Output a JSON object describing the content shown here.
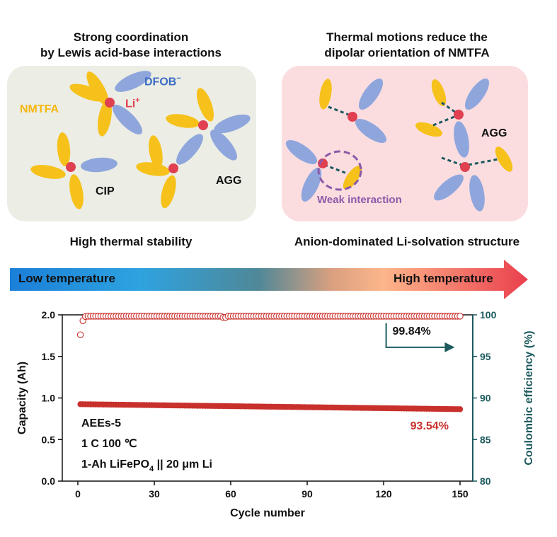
{
  "left_panel": {
    "heading_line1": "Strong coordination",
    "heading_line2": "by Lewis acid-base interactions",
    "label_nmtfa": "NMTFA",
    "label_li": "Li",
    "label_li_sup": "+",
    "label_dfob": "DFOB",
    "label_dfob_sup": "−",
    "label_cip": "CIP",
    "label_agg": "AGG",
    "caption": "High thermal stability"
  },
  "right_panel": {
    "heading_line1": "Thermal motions reduce the",
    "heading_line2": "dipolar orientation of NMTFA",
    "label_agg": "AGG",
    "label_weak": "Weak interaction",
    "caption": "Anion-dominated Li-solvation structure"
  },
  "temperature_bar": {
    "low_label": "Low temperature",
    "high_label": "High temperature"
  },
  "colors": {
    "left_panel_bg": "#ecede4",
    "right_panel_bg": "#fbdde0",
    "nmtfa": "#f6c11a",
    "dfob": "#8fa6dd",
    "li": "#e0404f",
    "capacity": "#c8302c",
    "ce": "#1c5a5e",
    "weak": "#8b5aa8"
  },
  "chart_data": {
    "type": "scatter",
    "xlabel": "Cycle number",
    "ylabel_left": "Capacity (Ah)",
    "ylabel_right": "Coulombic efficiency (%)",
    "xlim": [
      0,
      150
    ],
    "ylim_left": [
      0,
      2.0
    ],
    "ylim_right": [
      80,
      100
    ],
    "x_ticks": [
      "0",
      "30",
      "60",
      "90",
      "120",
      "150"
    ],
    "y_left_ticks": [
      "0.0",
      "0.5",
      "1.0",
      "1.5",
      "2.0"
    ],
    "y_right_ticks": [
      "80",
      "85",
      "90",
      "95",
      "100"
    ],
    "series": [
      {
        "axis": "left",
        "marker": "filled-circle",
        "color": "#c8302c",
        "start": {
          "cycle": 1,
          "capacity": 0.925
        },
        "end": {
          "cycle": 150,
          "capacity": 0.865
        }
      },
      {
        "axis": "right",
        "marker": "open-circle",
        "color": "#c8302c",
        "first_points": [
          [
            1,
            97.6
          ],
          [
            2,
            99.3
          ],
          [
            3,
            99.8
          ]
        ],
        "plateau": 99.84
      }
    ],
    "annotations": {
      "ce_value": "99.84%",
      "capacity_retention": "93.54%",
      "legend_line1": "AEEs-5",
      "legend_line2": "1 C 100 ℃",
      "legend_line3_a": "1-Ah LiFePO",
      "legend_line3_sub": "4",
      "legend_line3_b": " || 20 μm Li"
    }
  }
}
